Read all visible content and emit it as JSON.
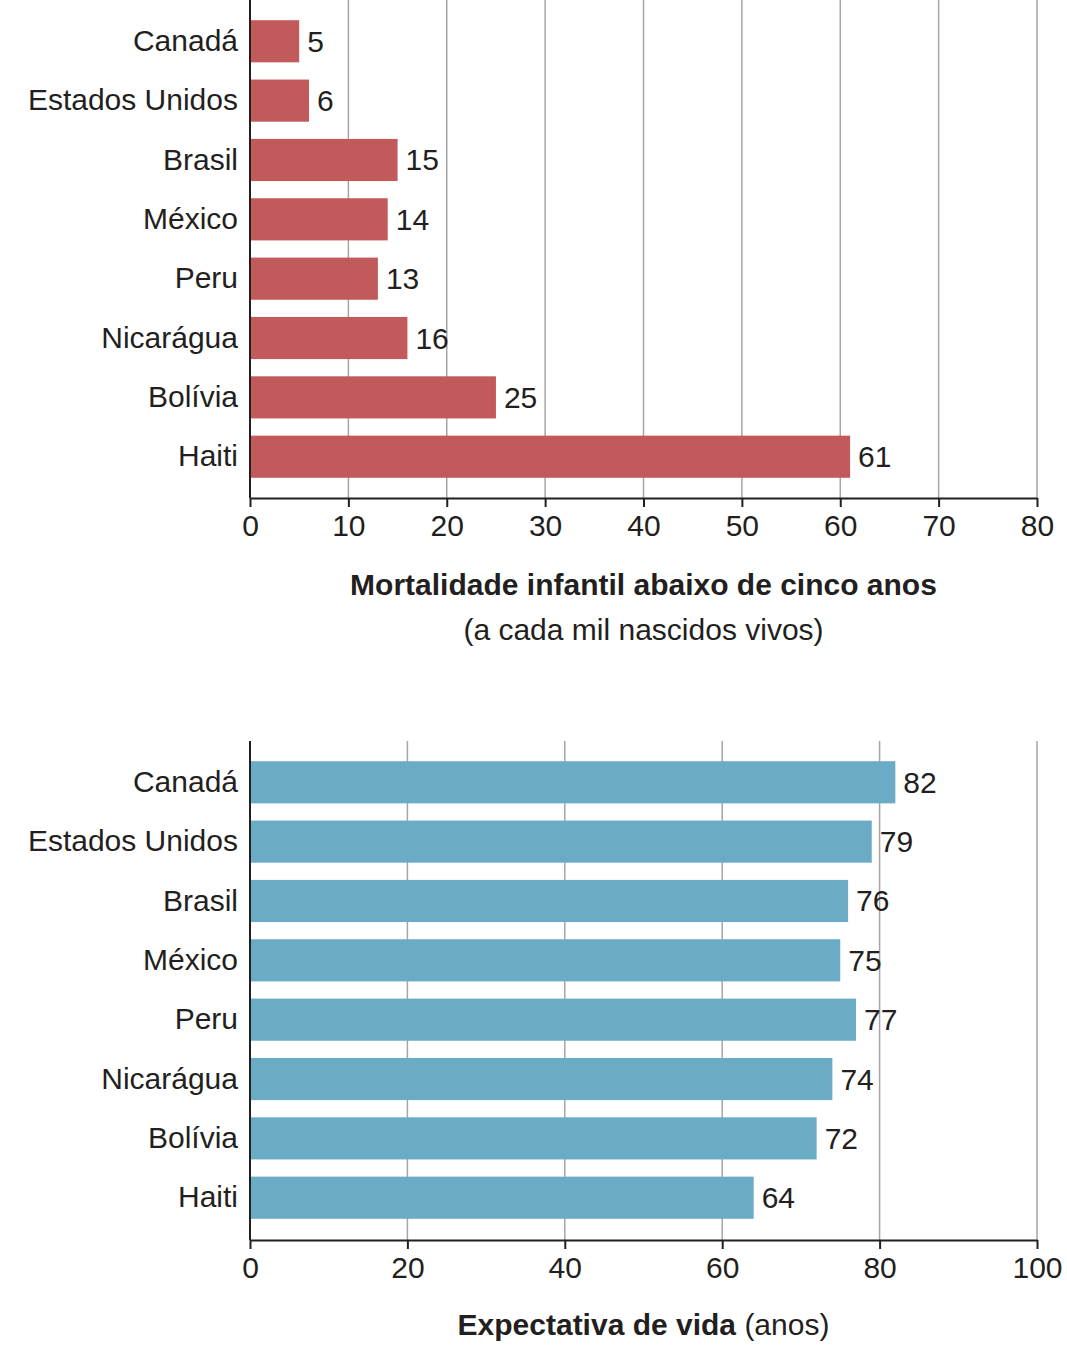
{
  "chart_data": [
    {
      "type": "bar",
      "orientation": "horizontal",
      "categories": [
        "Canadá",
        "Estados Unidos",
        "Brasil",
        "México",
        "Peru",
        "Nicarágua",
        "Bolívia",
        "Haiti"
      ],
      "values": [
        5,
        6,
        15,
        14,
        13,
        16,
        25,
        61
      ],
      "color": "#c2595b",
      "xlabel": "Mortalidade infantil abaixo de cinco anos",
      "xlabel_unit": "(a cada mil nascidos vivos)",
      "xlim": [
        0,
        80
      ],
      "xticks": [
        0,
        10,
        20,
        30,
        40,
        50,
        60,
        70,
        80
      ],
      "grid": true,
      "data_labels": true
    },
    {
      "type": "bar",
      "orientation": "horizontal",
      "categories": [
        "Canadá",
        "Estados Unidos",
        "Brasil",
        "México",
        "Peru",
        "Nicarágua",
        "Bolívia",
        "Haiti"
      ],
      "values": [
        82,
        79,
        76,
        75,
        77,
        74,
        72,
        64
      ],
      "color": "#6aabc6",
      "xlabel": "Expectativa de vida",
      "xlabel_unit": "(anos)",
      "xlim": [
        0,
        100
      ],
      "xticks": [
        0,
        20,
        40,
        60,
        80,
        100
      ],
      "grid": true,
      "data_labels": true
    }
  ]
}
